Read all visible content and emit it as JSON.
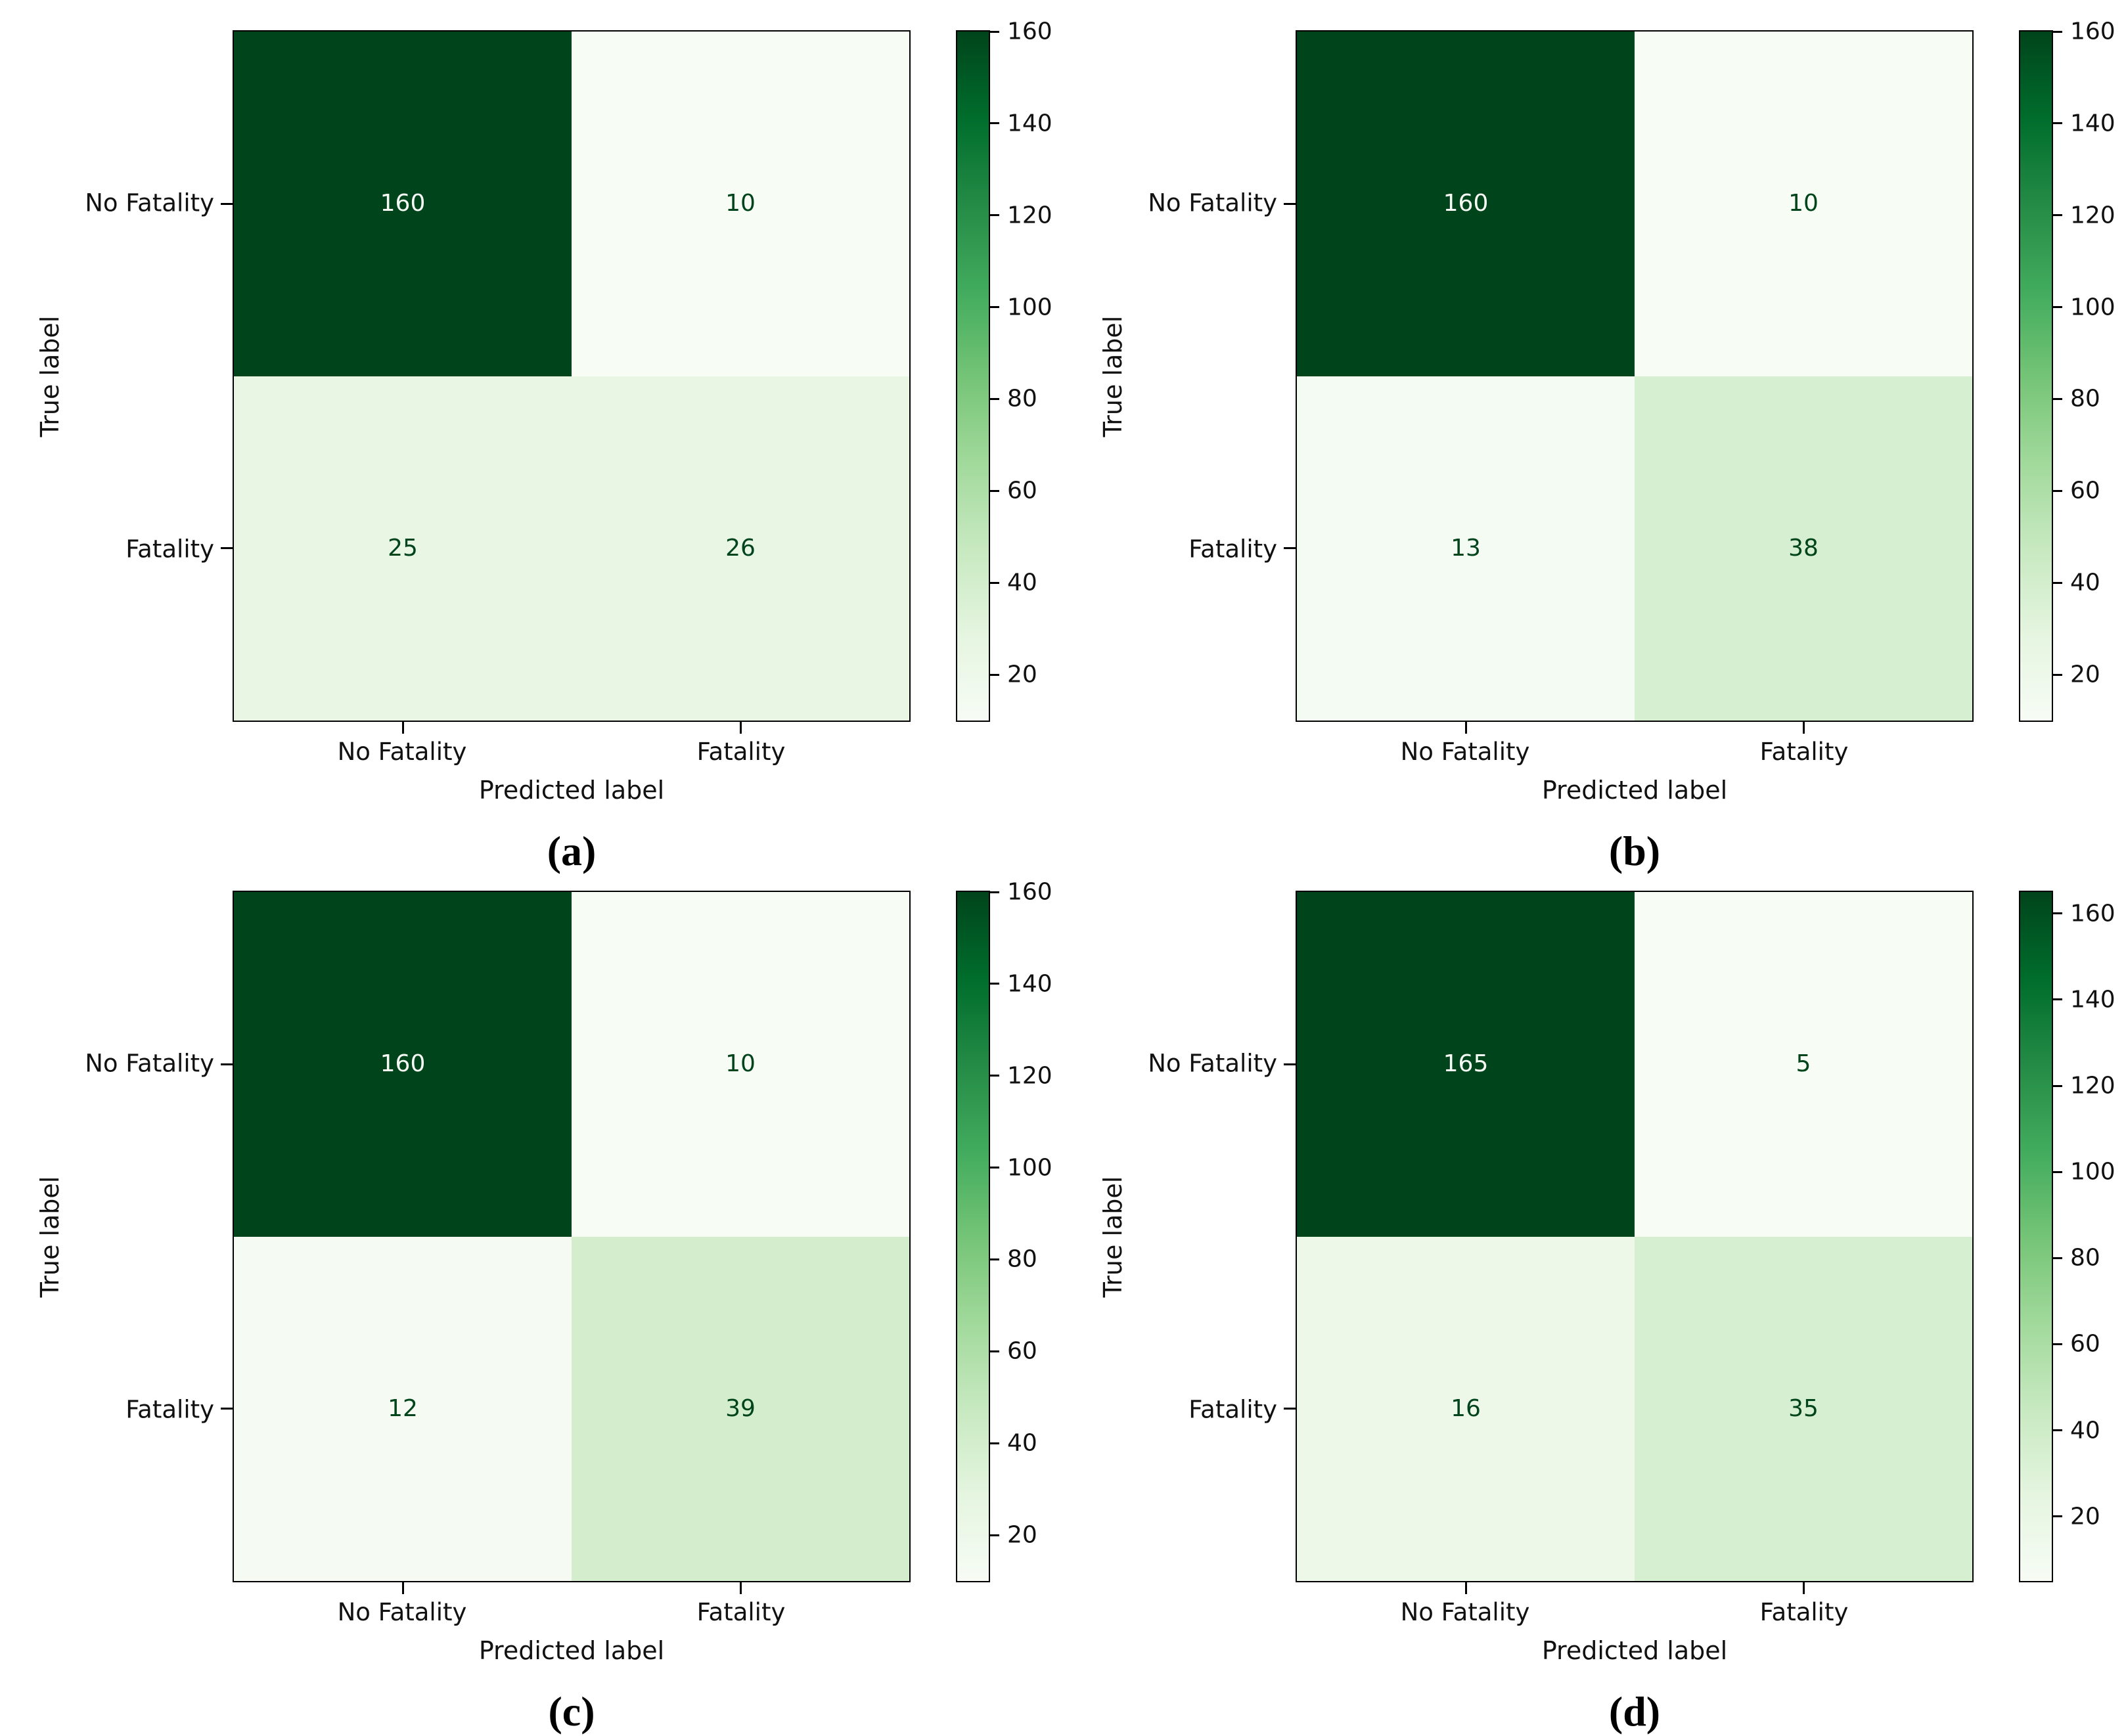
{
  "figure": {
    "description": "Four confusion matrices (Greens colormap) for fatality prediction models",
    "class_labels": [
      "No Fatality",
      "Fatality"
    ],
    "x_axis_title": "Predicted label",
    "y_axis_title": "True label",
    "colormap": "Greens",
    "colors": {
      "cmap_max": "#00441b",
      "cmap_min": "#f7fcf5",
      "text_on_dark": "#f7fcf5",
      "text_on_light": "#00441b",
      "axis_text": "#111111"
    }
  },
  "panels": [
    {
      "caption": "(a)",
      "ylabel": "True label",
      "xlabel": "Predicted label",
      "yticks": [
        "No Fatality",
        "Fatality"
      ],
      "xticks": [
        "No Fatality",
        "Fatality"
      ],
      "cells": [
        {
          "value": "160",
          "bg": "#00441b",
          "fg": "#f7fcf5"
        },
        {
          "value": "10",
          "bg": "#f7fcf5",
          "fg": "#00441b"
        },
        {
          "value": "25",
          "bg": "#e9f6e4",
          "fg": "#00441b"
        },
        {
          "value": "26",
          "bg": "#e8f6e3",
          "fg": "#00441b"
        }
      ],
      "colorbar": {
        "vmin": 10,
        "vmax": 160,
        "ticks": [
          160,
          140,
          120,
          100,
          80,
          60,
          40,
          20
        ]
      }
    },
    {
      "caption": "(b)",
      "ylabel": "True label",
      "xlabel": "Predicted label",
      "yticks": [
        "No Fatality",
        "Fatality"
      ],
      "xticks": [
        "No Fatality",
        "Fatality"
      ],
      "cells": [
        {
          "value": "160",
          "bg": "#00441b",
          "fg": "#f7fcf5"
        },
        {
          "value": "10",
          "bg": "#f7fcf5",
          "fg": "#00441b"
        },
        {
          "value": "13",
          "bg": "#f4fbf2",
          "fg": "#00441b"
        },
        {
          "value": "38",
          "bg": "#d6efd0",
          "fg": "#00441b"
        }
      ],
      "colorbar": {
        "vmin": 10,
        "vmax": 160,
        "ticks": [
          160,
          140,
          120,
          100,
          80,
          60,
          40,
          20
        ]
      }
    },
    {
      "caption": "(c)",
      "ylabel": "True label",
      "xlabel": "Predicted label",
      "yticks": [
        "No Fatality",
        "Fatality"
      ],
      "xticks": [
        "No Fatality",
        "Fatality"
      ],
      "cells": [
        {
          "value": "160",
          "bg": "#00441b",
          "fg": "#f7fcf5"
        },
        {
          "value": "10",
          "bg": "#f7fcf5",
          "fg": "#00441b"
        },
        {
          "value": "12",
          "bg": "#f5fbf3",
          "fg": "#00441b"
        },
        {
          "value": "39",
          "bg": "#d4eecd",
          "fg": "#00441b"
        }
      ],
      "colorbar": {
        "vmin": 10,
        "vmax": 160,
        "ticks": [
          160,
          140,
          120,
          100,
          80,
          60,
          40,
          20
        ]
      }
    },
    {
      "caption": "(d)",
      "ylabel": "True label",
      "xlabel": "Predicted label",
      "yticks": [
        "No Fatality",
        "Fatality"
      ],
      "xticks": [
        "No Fatality",
        "Fatality"
      ],
      "cells": [
        {
          "value": "165",
          "bg": "#00441b",
          "fg": "#f7fcf5"
        },
        {
          "value": "5",
          "bg": "#f7fcf5",
          "fg": "#00441b"
        },
        {
          "value": "16",
          "bg": "#edf8e9",
          "fg": "#00441b"
        },
        {
          "value": "35",
          "bg": "#d6efd0",
          "fg": "#00441b"
        }
      ],
      "colorbar": {
        "vmin": 5,
        "vmax": 165,
        "ticks": [
          160,
          140,
          120,
          100,
          80,
          60,
          40,
          20
        ]
      }
    }
  ],
  "chart_data": [
    {
      "type": "heatmap",
      "title": "(a)",
      "x_categories": [
        "No Fatality",
        "Fatality"
      ],
      "y_categories": [
        "No Fatality",
        "Fatality"
      ],
      "matrix": [
        [
          160,
          10
        ],
        [
          25,
          26
        ]
      ],
      "xlabel": "Predicted label",
      "ylabel": "True label",
      "colormap": "Greens",
      "colorbar_ticks": [
        20,
        40,
        60,
        80,
        100,
        120,
        140,
        160
      ],
      "color_range": [
        10,
        160
      ],
      "legend_position": "right-colorbar",
      "grid": false
    },
    {
      "type": "heatmap",
      "title": "(b)",
      "x_categories": [
        "No Fatality",
        "Fatality"
      ],
      "y_categories": [
        "No Fatality",
        "Fatality"
      ],
      "matrix": [
        [
          160,
          10
        ],
        [
          13,
          38
        ]
      ],
      "xlabel": "Predicted label",
      "ylabel": "True label",
      "colormap": "Greens",
      "colorbar_ticks": [
        20,
        40,
        60,
        80,
        100,
        120,
        140,
        160
      ],
      "color_range": [
        10,
        160
      ],
      "legend_position": "right-colorbar",
      "grid": false
    },
    {
      "type": "heatmap",
      "title": "(c)",
      "x_categories": [
        "No Fatality",
        "Fatality"
      ],
      "y_categories": [
        "No Fatality",
        "Fatality"
      ],
      "matrix": [
        [
          160,
          10
        ],
        [
          12,
          39
        ]
      ],
      "xlabel": "Predicted label",
      "ylabel": "True label",
      "colormap": "Greens",
      "colorbar_ticks": [
        20,
        40,
        60,
        80,
        100,
        120,
        140,
        160
      ],
      "color_range": [
        10,
        160
      ],
      "legend_position": "right-colorbar",
      "grid": false
    },
    {
      "type": "heatmap",
      "title": "(d)",
      "x_categories": [
        "No Fatality",
        "Fatality"
      ],
      "y_categories": [
        "No Fatality",
        "Fatality"
      ],
      "matrix": [
        [
          165,
          5
        ],
        [
          16,
          35
        ]
      ],
      "xlabel": "Predicted label",
      "ylabel": "True label",
      "colormap": "Greens",
      "colorbar_ticks": [
        20,
        40,
        60,
        80,
        100,
        120,
        140,
        160
      ],
      "color_range": [
        5,
        165
      ],
      "legend_position": "right-colorbar",
      "grid": false
    }
  ]
}
